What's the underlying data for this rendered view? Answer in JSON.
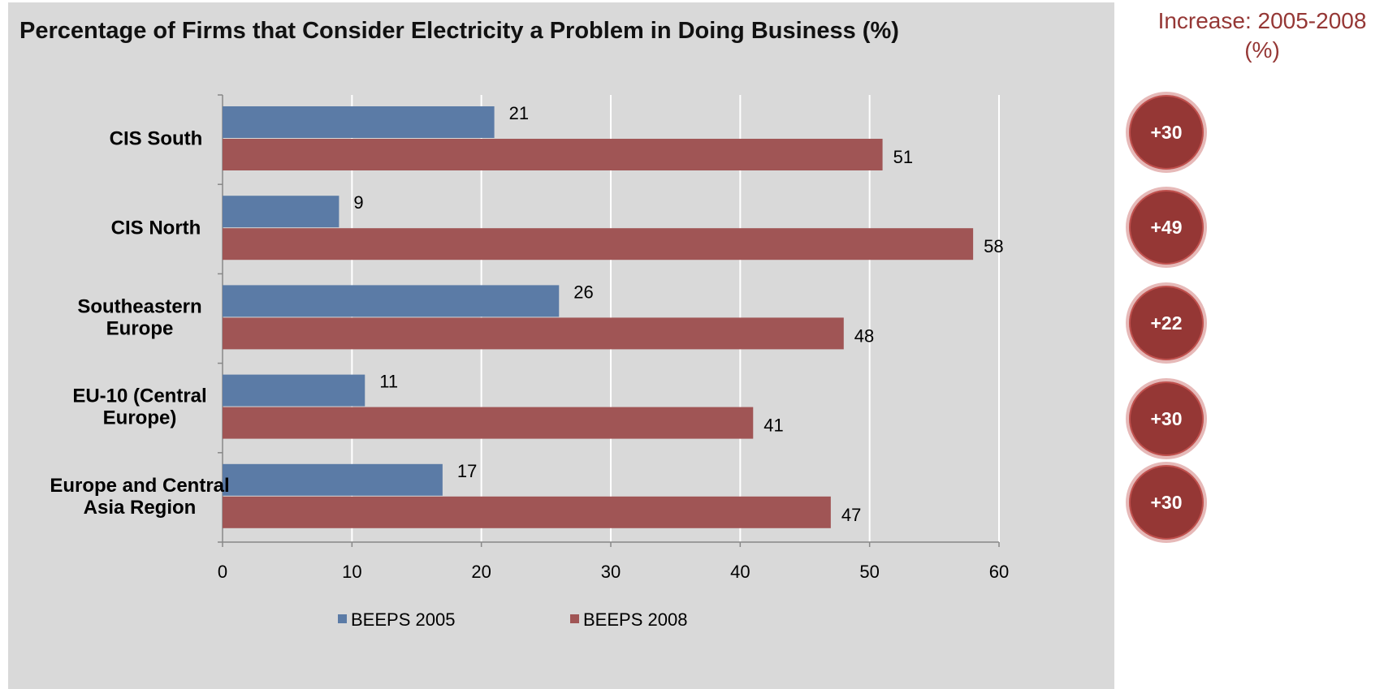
{
  "chart_data": {
    "type": "bar",
    "orientation": "horizontal",
    "title": "Percentage of Firms that Consider Electricity a Problem in Doing Business (%)",
    "categories": [
      "CIS South",
      "CIS North",
      "Southeastern Europe",
      "EU-10 (Central Europe)",
      "Europe and Central Asia Region"
    ],
    "category_lines": [
      [
        "CIS South"
      ],
      [
        "CIS North"
      ],
      [
        "Southeastern",
        "Europe"
      ],
      [
        "EU-10 (Central",
        "Europe)"
      ],
      [
        "Europe and Central",
        "Asia Region"
      ]
    ],
    "series": [
      {
        "name": "BEEPS 2005",
        "color": "#5b7ba6",
        "values": [
          21,
          9,
          26,
          11,
          17
        ]
      },
      {
        "name": "BEEPS 2008",
        "color": "#a05555",
        "values": [
          51,
          58,
          48,
          41,
          47
        ]
      }
    ],
    "xlim": [
      0,
      60
    ],
    "xticks": [
      "0",
      "10",
      "20",
      "30",
      "40",
      "50",
      "60"
    ],
    "grid": "vertical",
    "legend": "bottom"
  },
  "increase": {
    "title": "Increase: 2005-2008 (%)",
    "values": [
      "+30",
      "+49",
      "+22",
      "+30",
      "+30"
    ]
  },
  "colors": {
    "panel": "#d9d9d9",
    "badge_fill": "#953735",
    "badge_ring": "#e6b9b8",
    "increase_title": "#953735"
  }
}
